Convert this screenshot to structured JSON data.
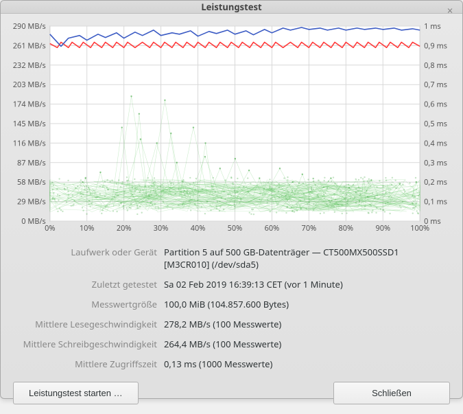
{
  "window": {
    "title": "Leistungstest",
    "close_icon": "×"
  },
  "chart": {
    "background": "#ffffff",
    "grid_color": "#d8d8d8",
    "left_axis": {
      "unit": "MB/s",
      "ticks": [
        0,
        29,
        58,
        87,
        116,
        145,
        174,
        203,
        232,
        261,
        290
      ],
      "min": 0,
      "max": 290
    },
    "right_axis": {
      "unit": "ms",
      "ticks": [
        0,
        0.1,
        0.2,
        0.3,
        0.4,
        0.5,
        0.6,
        0.7,
        0.8,
        0.9,
        1
      ],
      "tick_labels": [
        "0 ms",
        "0,1 ms",
        "0,2 ms",
        "0,3 ms",
        "0,4 ms",
        "0,5 ms",
        "0,6 ms",
        "0,7 ms",
        "0,8 ms",
        "0,9 ms",
        "1 ms"
      ],
      "min": 0,
      "max": 1
    },
    "x_axis": {
      "ticks": [
        0,
        10,
        20,
        30,
        40,
        50,
        60,
        70,
        80,
        90,
        100
      ],
      "min": 0,
      "max": 100,
      "suffix": "%"
    },
    "read_line": {
      "color": "#3b5bc4",
      "width": 1.6,
      "points": [
        [
          0,
          278
        ],
        [
          3,
          260
        ],
        [
          5,
          272
        ],
        [
          8,
          276
        ],
        [
          10,
          269
        ],
        [
          13,
          278
        ],
        [
          15,
          273
        ],
        [
          18,
          280
        ],
        [
          20,
          272
        ],
        [
          23,
          281
        ],
        [
          25,
          276
        ],
        [
          28,
          284
        ],
        [
          30,
          276
        ],
        [
          33,
          280
        ],
        [
          35,
          278
        ],
        [
          38,
          283
        ],
        [
          40,
          275
        ],
        [
          43,
          282
        ],
        [
          45,
          279
        ],
        [
          48,
          284
        ],
        [
          50,
          278
        ],
        [
          53,
          283
        ],
        [
          55,
          277
        ],
        [
          58,
          285
        ],
        [
          60,
          280
        ],
        [
          63,
          287
        ],
        [
          65,
          284
        ],
        [
          68,
          288
        ],
        [
          70,
          285
        ],
        [
          73,
          287
        ],
        [
          75,
          284
        ],
        [
          78,
          287
        ],
        [
          80,
          284
        ],
        [
          83,
          287
        ],
        [
          85,
          285
        ],
        [
          88,
          287
        ],
        [
          90,
          285
        ],
        [
          93,
          287
        ],
        [
          95,
          284
        ],
        [
          98,
          286
        ],
        [
          100,
          284
        ]
      ]
    },
    "write_line": {
      "color": "#ff3b3b",
      "width": 1.6,
      "points": [
        [
          0,
          264
        ],
        [
          2,
          258
        ],
        [
          3,
          266
        ],
        [
          5,
          258
        ],
        [
          6,
          266
        ],
        [
          8,
          258
        ],
        [
          9,
          266
        ],
        [
          11,
          258
        ],
        [
          12,
          266
        ],
        [
          14,
          258
        ],
        [
          15,
          266
        ],
        [
          17,
          258
        ],
        [
          18,
          266
        ],
        [
          20,
          258
        ],
        [
          21,
          266
        ],
        [
          23,
          258
        ],
        [
          25,
          266
        ],
        [
          27,
          258
        ],
        [
          28,
          266
        ],
        [
          30,
          258
        ],
        [
          31,
          266
        ],
        [
          33,
          258
        ],
        [
          34,
          266
        ],
        [
          36,
          258
        ],
        [
          37,
          266
        ],
        [
          39,
          258
        ],
        [
          40,
          266
        ],
        [
          42,
          258
        ],
        [
          43,
          266
        ],
        [
          45,
          258
        ],
        [
          46,
          266
        ],
        [
          48,
          258
        ],
        [
          49,
          266
        ],
        [
          51,
          258
        ],
        [
          52,
          266
        ],
        [
          54,
          258
        ],
        [
          55,
          266
        ],
        [
          57,
          258
        ],
        [
          58,
          266
        ],
        [
          60,
          258
        ],
        [
          61,
          266
        ],
        [
          63,
          258
        ],
        [
          65,
          266
        ],
        [
          67,
          258
        ],
        [
          68,
          266
        ],
        [
          70,
          258
        ],
        [
          71,
          266
        ],
        [
          73,
          258
        ],
        [
          74,
          266
        ],
        [
          76,
          258
        ],
        [
          77,
          266
        ],
        [
          79,
          258
        ],
        [
          80,
          266
        ],
        [
          82,
          258
        ],
        [
          83,
          266
        ],
        [
          85,
          258
        ],
        [
          86,
          266
        ],
        [
          88,
          258
        ],
        [
          89,
          266
        ],
        [
          91,
          258
        ],
        [
          92,
          266
        ],
        [
          94,
          258
        ],
        [
          95,
          266
        ],
        [
          97,
          258
        ],
        [
          98,
          266
        ],
        [
          100,
          260
        ]
      ]
    },
    "access_cloud": {
      "color": "#4fbf4f",
      "point_color": "#3fa53f",
      "line_opacity": 0.22,
      "point_opacity": 0.6,
      "line_width": 0.6,
      "point_radius": 1.2,
      "count": 140,
      "base_ms": 0.13,
      "jitter_ms": 0.12,
      "outliers": [
        [
          5,
          0.2
        ],
        [
          8,
          0.22
        ],
        [
          12,
          0.25
        ],
        [
          17,
          0.48
        ],
        [
          18,
          0.64
        ],
        [
          20,
          0.42
        ],
        [
          22,
          0.55
        ],
        [
          25,
          0.4
        ],
        [
          27,
          0.62
        ],
        [
          30,
          0.45
        ],
        [
          32,
          0.3
        ],
        [
          35,
          0.48
        ],
        [
          38,
          0.33
        ],
        [
          40,
          0.4
        ],
        [
          43,
          0.27
        ],
        [
          46,
          0.32
        ],
        [
          50,
          0.26
        ],
        [
          55,
          0.22
        ],
        [
          58,
          0.27
        ],
        [
          62,
          0.2
        ],
        [
          66,
          0.24
        ],
        [
          72,
          0.22
        ],
        [
          78,
          0.17
        ],
        [
          85,
          0.21
        ],
        [
          92,
          0.19
        ],
        [
          98,
          0.2
        ]
      ]
    }
  },
  "info": {
    "rows": [
      {
        "label": "Laufwerk oder Gerät",
        "value": "Partition 5 auf 500 GB-Datenträger — CT500MX500SSD1 [M3CR010] (/dev/sda5)"
      },
      {
        "label": "Zuletzt getestet",
        "value": "Sa 02 Feb 2019 16:39:13 CET (vor 1 Minute)"
      },
      {
        "label": "Messwertgröße",
        "value": "100,0 MiB (104.857.600 Bytes)"
      },
      {
        "label": "Mittlere Lesegeschwindigkeit",
        "value": "278,2 MB/s (100 Messwerte)"
      },
      {
        "label": "Mittlere Schreibgeschwindigkeit",
        "value": "264,4 MB/s (100 Messwerte)"
      },
      {
        "label": "Mittlere Zugriffszeit",
        "value": "0,13 ms (1000 Messwerte)"
      }
    ]
  },
  "buttons": {
    "start": "Leistungstest starten …",
    "close": "Schließen"
  }
}
